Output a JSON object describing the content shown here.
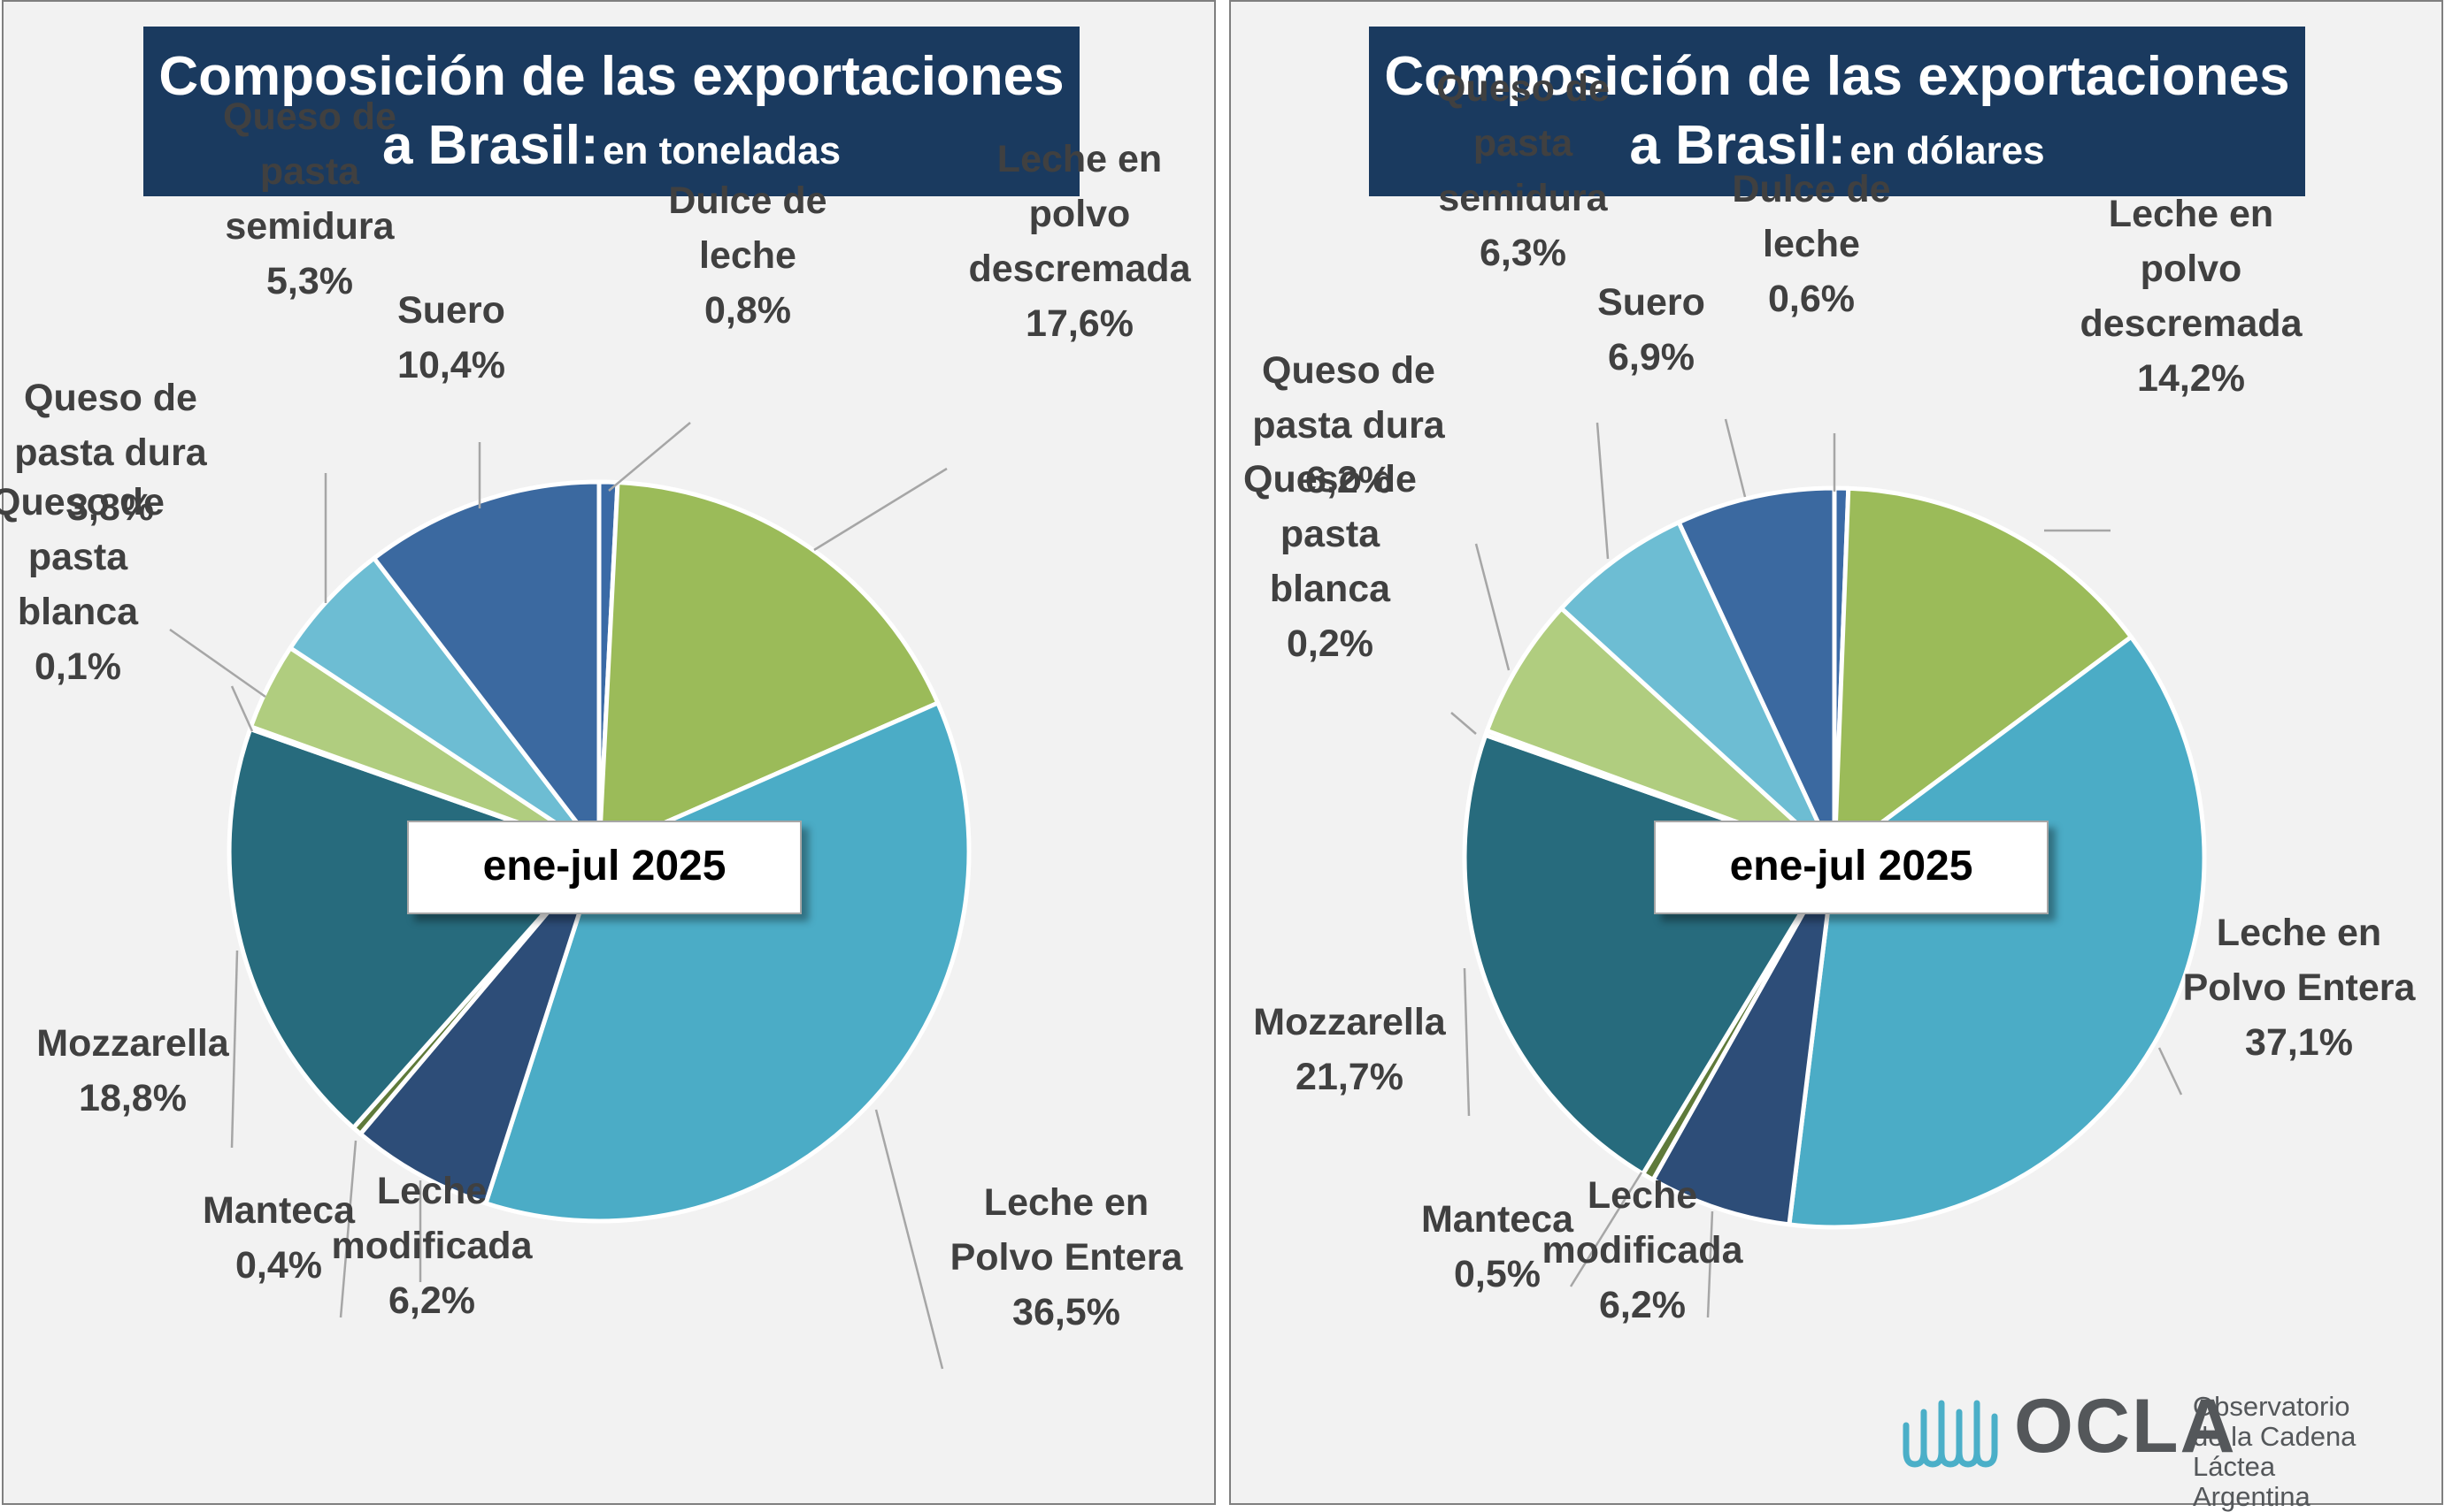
{
  "left": {
    "title_line1": "Composición de las exportaciones",
    "title_main2": "a Brasil:",
    "title_unit": "en toneladas",
    "period": "ene-jul 2025"
  },
  "right": {
    "title_line1": "Composición de las exportaciones",
    "title_main2": "a Brasil:",
    "title_unit": "en dólares",
    "period": "ene-jul 2025"
  },
  "logo": {
    "name": "OCLA",
    "line1": "Observatorio",
    "line2": "de la Cadena Láctea",
    "line3": "Argentina",
    "color": "#4bafc8"
  },
  "chart_data": [
    {
      "type": "pie",
      "title": "Composición de las exportaciones a Brasil: en toneladas",
      "period": "ene-jul 2025",
      "slices": [
        {
          "label": [
            "Dulce de",
            "leche"
          ],
          "value": 0.8,
          "text": "0,8%",
          "color": "#3a6aa6"
        },
        {
          "label": [
            "Leche en",
            "polvo",
            "descremada"
          ],
          "value": 17.6,
          "text": "17,6%",
          "color": "#9bbb59"
        },
        {
          "label": [
            "Leche en",
            "Polvo Entera"
          ],
          "value": 36.5,
          "text": "36,5%",
          "color": "#4bacc6"
        },
        {
          "label": [
            "Leche",
            "modificada"
          ],
          "value": 6.2,
          "text": "6,2%",
          "color": "#2d4d78"
        },
        {
          "label": [
            "Manteca"
          ],
          "value": 0.4,
          "text": "0,4%",
          "color": "#5f7a3a"
        },
        {
          "label": [
            "Mozzarella"
          ],
          "value": 18.8,
          "text": "18,8%",
          "color": "#276b7d"
        },
        {
          "label": [
            "Queso de",
            "pasta",
            "blanca"
          ],
          "value": 0.1,
          "text": "0,1%",
          "color": "#c3d69b"
        },
        {
          "label": [
            "Queso de",
            "pasta dura"
          ],
          "value": 3.8,
          "text": "3,8%",
          "color": "#b0cd7f"
        },
        {
          "label": [
            "Queso de",
            "pasta",
            "semidura"
          ],
          "value": 5.3,
          "text": "5,3%",
          "color": "#6dbdd3"
        },
        {
          "label": [
            "Suero"
          ],
          "value": 10.4,
          "text": "10,4%",
          "color": "#3b69a0"
        }
      ]
    },
    {
      "type": "pie",
      "title": "Composición de las exportaciones a Brasil: en dólares",
      "period": "ene-jul 2025",
      "slices": [
        {
          "label": [
            "Dulce de",
            "leche"
          ],
          "value": 0.6,
          "text": "0,6%",
          "color": "#3a6aa6"
        },
        {
          "label": [
            "Leche en",
            "polvo",
            "descremada"
          ],
          "value": 14.2,
          "text": "14,2%",
          "color": "#9bbb59"
        },
        {
          "label": [
            "Leche en",
            "Polvo Entera"
          ],
          "value": 37.1,
          "text": "37,1%",
          "color": "#4bacc6"
        },
        {
          "label": [
            "Leche",
            "modificada"
          ],
          "value": 6.2,
          "text": "6,2%",
          "color": "#2d4d78"
        },
        {
          "label": [
            "Manteca"
          ],
          "value": 0.5,
          "text": "0,5%",
          "color": "#5f7a3a"
        },
        {
          "label": [
            "Mozzarella"
          ],
          "value": 21.7,
          "text": "21,7%",
          "color": "#276b7d"
        },
        {
          "label": [
            "Queso de",
            "pasta",
            "blanca"
          ],
          "value": 0.2,
          "text": "0,2%",
          "color": "#c3d69b"
        },
        {
          "label": [
            "Queso de",
            "pasta dura"
          ],
          "value": 6.2,
          "text": "6,2%",
          "color": "#b0cd7f"
        },
        {
          "label": [
            "Queso de",
            "pasta",
            "semidura"
          ],
          "value": 6.3,
          "text": "6,3%",
          "color": "#6dbdd3"
        },
        {
          "label": [
            "Suero"
          ],
          "value": 6.9,
          "text": "6,9%",
          "color": "#3b69a0"
        }
      ]
    }
  ]
}
